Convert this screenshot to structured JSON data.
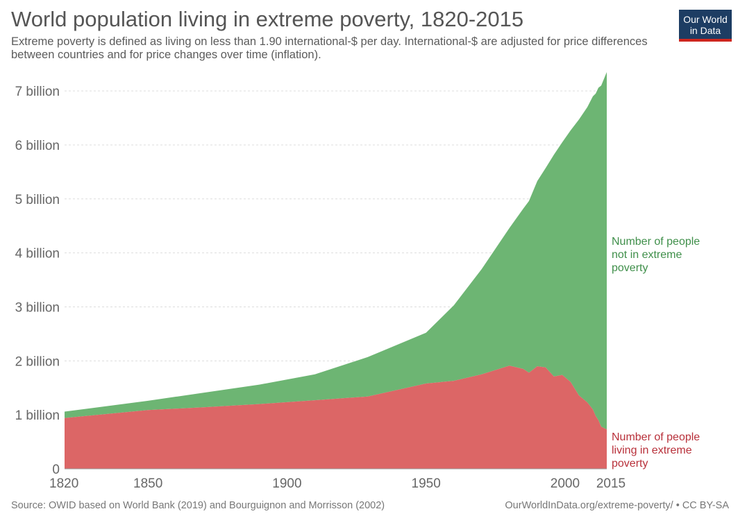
{
  "header": {
    "title": "World population living in extreme poverty, 1820-2015",
    "subtitle": "Extreme poverty is defined as living on less than 1.90 international-$ per day. International-$ are adjusted for price differences between countries and for price changes over time (inflation).",
    "logo_line1": "Our World",
    "logo_line2": "in Data"
  },
  "footer": {
    "source": "Source: OWID based on World Bank (2019) and Bourguignon and Morrisson (2002)",
    "license": "OurWorldInData.org/extreme-poverty/ • CC BY-SA"
  },
  "colors": {
    "not_poor": "#6db573",
    "poor": "#dc6666",
    "not_poor_label": "#3f8f4a",
    "poor_label": "#b8303a",
    "logo_bg": "#1d3d63",
    "logo_accent": "#ce261e"
  },
  "chart_data": {
    "type": "area",
    "stacked": true,
    "title": "World population living in extreme poverty, 1820-2015",
    "xlim": [
      1820,
      2015
    ],
    "ylim": [
      0,
      7.4
    ],
    "y_unit": "billion",
    "x_ticks": [
      "1820",
      "1850",
      "1900",
      "1950",
      "2000",
      "2015"
    ],
    "x_tick_values": [
      1820,
      1850,
      1900,
      1950,
      2000,
      2015
    ],
    "y_ticks": [
      "0",
      "1 billion",
      "2 billion",
      "3 billion",
      "4 billion",
      "5 billion",
      "6 billion",
      "7 billion"
    ],
    "y_tick_values": [
      0,
      1,
      2,
      3,
      4,
      5,
      6,
      7
    ],
    "grid": true,
    "x": [
      1820,
      1850,
      1870,
      1890,
      1910,
      1929,
      1950,
      1960,
      1970,
      1980,
      1985,
      1987,
      1990,
      1993,
      1996,
      1999,
      2002,
      2005,
      2008,
      2010,
      2011,
      2012,
      2013,
      2015
    ],
    "series": [
      {
        "name": "Number of people living in extreme poverty",
        "label_lines": [
          "Number of people",
          "living in extreme",
          "poverty"
        ],
        "values": [
          0.94,
          1.09,
          1.14,
          1.2,
          1.27,
          1.34,
          1.58,
          1.63,
          1.75,
          1.91,
          1.85,
          1.78,
          1.9,
          1.88,
          1.71,
          1.74,
          1.61,
          1.36,
          1.23,
          1.1,
          0.98,
          0.9,
          0.78,
          0.73
        ]
      },
      {
        "name": "Number of people not in extreme poverty",
        "label_lines": [
          "Number of people",
          "not in extreme",
          "poverty"
        ],
        "values": [
          0.12,
          0.17,
          0.27,
          0.36,
          0.48,
          0.73,
          0.94,
          1.4,
          1.95,
          2.55,
          2.97,
          3.18,
          3.43,
          3.69,
          4.11,
          4.31,
          4.66,
          5.11,
          5.47,
          5.8,
          5.97,
          6.16,
          6.32,
          6.62
        ]
      }
    ]
  }
}
